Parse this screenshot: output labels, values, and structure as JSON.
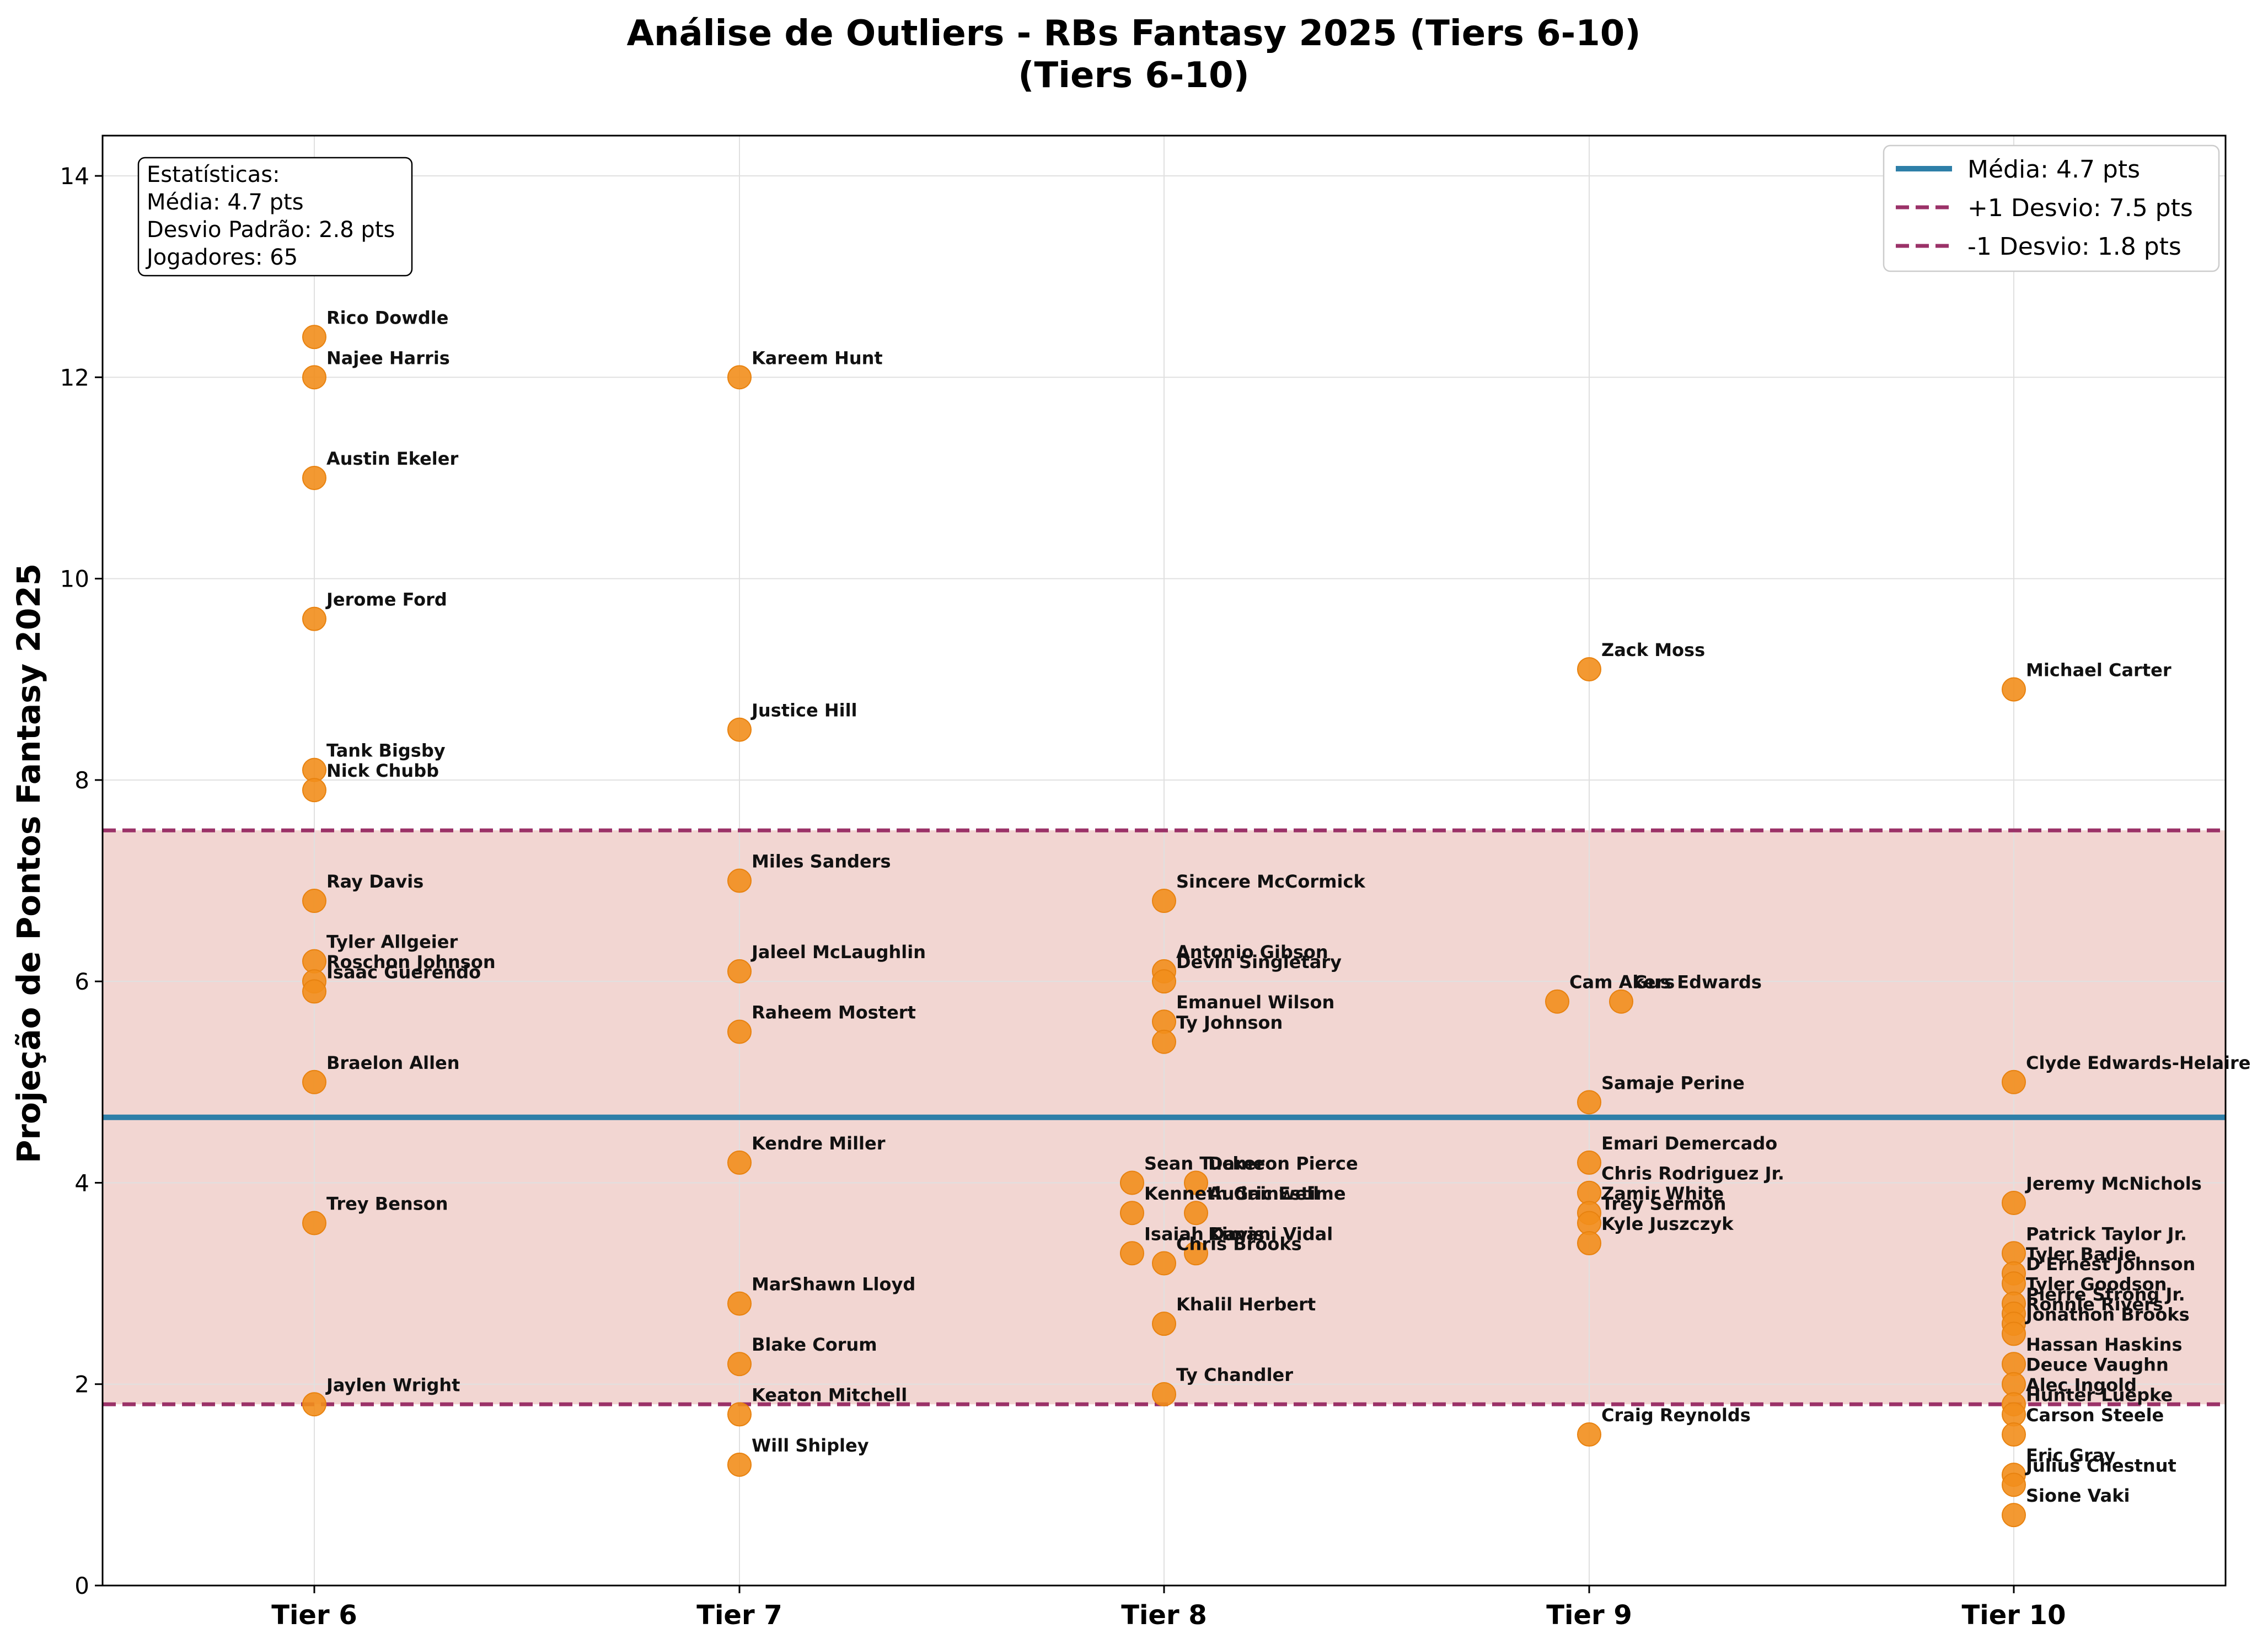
{
  "chart_data": {
    "type": "scatter",
    "title": "Análise de Outliers - RBs Fantasy 2025 (Tiers 6-10)",
    "subtitle": "(Tiers 6-10)",
    "xlabel": "",
    "ylabel": "Projeção de Pontos Fantasy 2025",
    "categories": [
      "Tier 6",
      "Tier 7",
      "Tier 8",
      "Tier 9",
      "Tier 10"
    ],
    "ylim": [
      0,
      14.4
    ],
    "yticks": [
      0,
      2,
      4,
      6,
      8,
      10,
      12,
      14
    ],
    "grid": true,
    "legend_position": "top-right",
    "colors": {
      "points": "#f28e1c",
      "mean_line": "#2e7fa8",
      "std_lines": "#9b3268",
      "band": "#f2d6d2",
      "grid": "#e0e0e0"
    },
    "mean": 4.65,
    "plus_1sd": 7.5,
    "minus_1sd": 1.8,
    "legend": [
      {
        "label": "Média: 4.7 pts",
        "style": "solid"
      },
      {
        "label": "+1 Desvio: 7.5 pts",
        "style": "dashed"
      },
      {
        "label": "-1 Desvio: 1.8 pts",
        "style": "dashed"
      }
    ],
    "stats_box": [
      "Estatísticas:",
      "Média: 4.7 pts",
      "Desvio Padrão: 2.8 pts",
      "Jogadores: 65"
    ],
    "points": [
      {
        "tier": "Tier 6",
        "name": "Rico Dowdle",
        "y": 12.4
      },
      {
        "tier": "Tier 6",
        "name": "Najee Harris",
        "y": 12.0
      },
      {
        "tier": "Tier 6",
        "name": "Austin Ekeler",
        "y": 11.0
      },
      {
        "tier": "Tier 6",
        "name": "Jerome Ford",
        "y": 9.6
      },
      {
        "tier": "Tier 6",
        "name": "Tank Bigsby",
        "y": 8.1
      },
      {
        "tier": "Tier 6",
        "name": "Nick Chubb",
        "y": 7.9
      },
      {
        "tier": "Tier 6",
        "name": "Ray Davis",
        "y": 6.8
      },
      {
        "tier": "Tier 6",
        "name": "Tyler Allgeier",
        "y": 6.2
      },
      {
        "tier": "Tier 6",
        "name": "Roschon Johnson",
        "y": 6.0
      },
      {
        "tier": "Tier 6",
        "name": "Isaac Guerendo",
        "y": 5.9
      },
      {
        "tier": "Tier 6",
        "name": "Braelon Allen",
        "y": 5.0
      },
      {
        "tier": "Tier 6",
        "name": "Trey Benson",
        "y": 3.6
      },
      {
        "tier": "Tier 6",
        "name": "Jaylen Wright",
        "y": 1.8
      },
      {
        "tier": "Tier 7",
        "name": "Kareem Hunt",
        "y": 12.0
      },
      {
        "tier": "Tier 7",
        "name": "Justice Hill",
        "y": 8.5
      },
      {
        "tier": "Tier 7",
        "name": "Miles Sanders",
        "y": 7.0
      },
      {
        "tier": "Tier 7",
        "name": "Jaleel McLaughlin",
        "y": 6.1
      },
      {
        "tier": "Tier 7",
        "name": "Raheem Mostert",
        "y": 5.5
      },
      {
        "tier": "Tier 7",
        "name": "Kendre Miller",
        "y": 4.2
      },
      {
        "tier": "Tier 7",
        "name": "MarShawn Lloyd",
        "y": 2.8
      },
      {
        "tier": "Tier 7",
        "name": "Blake Corum",
        "y": 2.2
      },
      {
        "tier": "Tier 7",
        "name": "Keaton Mitchell",
        "y": 1.7
      },
      {
        "tier": "Tier 7",
        "name": "Will Shipley",
        "y": 1.2
      },
      {
        "tier": "Tier 8",
        "name": "Sincere McCormick",
        "y": 6.8
      },
      {
        "tier": "Tier 8",
        "name": "Antonio Gibson",
        "y": 6.1
      },
      {
        "tier": "Tier 8",
        "name": "Devin Singletary",
        "y": 6.0
      },
      {
        "tier": "Tier 8",
        "name": "Emanuel Wilson",
        "y": 5.6
      },
      {
        "tier": "Tier 8",
        "name": "Ty Johnson",
        "y": 5.4
      },
      {
        "tier": "Tier 8",
        "name": "Sean Tucker",
        "y": 4.0
      },
      {
        "tier": "Tier 8",
        "name": "Dameon Pierce",
        "y": 4.0
      },
      {
        "tier": "Tier 8",
        "name": "Kenneth Gainwell",
        "y": 3.7
      },
      {
        "tier": "Tier 8",
        "name": "Audric Estime",
        "y": 3.7
      },
      {
        "tier": "Tier 8",
        "name": "Isaiah Davis",
        "y": 3.3
      },
      {
        "tier": "Tier 8",
        "name": "Kimani Vidal",
        "y": 3.3
      },
      {
        "tier": "Tier 8",
        "name": "Chris Brooks",
        "y": 3.2
      },
      {
        "tier": "Tier 8",
        "name": "Khalil Herbert",
        "y": 2.6
      },
      {
        "tier": "Tier 8",
        "name": "Ty Chandler",
        "y": 1.9
      },
      {
        "tier": "Tier 9",
        "name": "Zack Moss",
        "y": 9.1
      },
      {
        "tier": "Tier 9",
        "name": "Cam Akers",
        "y": 5.8
      },
      {
        "tier": "Tier 9",
        "name": "Gus Edwards",
        "y": 5.8
      },
      {
        "tier": "Tier 9",
        "name": "Samaje Perine",
        "y": 4.8
      },
      {
        "tier": "Tier 9",
        "name": "Emari Demercado",
        "y": 4.2
      },
      {
        "tier": "Tier 9",
        "name": "Chris Rodriguez Jr.",
        "y": 3.9
      },
      {
        "tier": "Tier 9",
        "name": "Zamir White",
        "y": 3.7
      },
      {
        "tier": "Tier 9",
        "name": "Trey Sermon",
        "y": 3.6
      },
      {
        "tier": "Tier 9",
        "name": "Kyle Juszczyk",
        "y": 3.4
      },
      {
        "tier": "Tier 9",
        "name": "Craig Reynolds",
        "y": 1.5
      },
      {
        "tier": "Tier 10",
        "name": "Michael Carter",
        "y": 8.9
      },
      {
        "tier": "Tier 10",
        "name": "Clyde Edwards-Helaire",
        "y": 5.0
      },
      {
        "tier": "Tier 10",
        "name": "Jeremy McNichols",
        "y": 3.8
      },
      {
        "tier": "Tier 10",
        "name": "Patrick Taylor Jr.",
        "y": 3.3
      },
      {
        "tier": "Tier 10",
        "name": "Tyler Badie",
        "y": 3.1
      },
      {
        "tier": "Tier 10",
        "name": "D'Ernest Johnson",
        "y": 3.0
      },
      {
        "tier": "Tier 10",
        "name": "Tyler Goodson",
        "y": 2.8
      },
      {
        "tier": "Tier 10",
        "name": "Pierre Strong Jr.",
        "y": 2.7
      },
      {
        "tier": "Tier 10",
        "name": "Ronnie Rivers",
        "y": 2.6
      },
      {
        "tier": "Tier 10",
        "name": "Jonathon Brooks",
        "y": 2.5
      },
      {
        "tier": "Tier 10",
        "name": "Hassan Haskins",
        "y": 2.2
      },
      {
        "tier": "Tier 10",
        "name": "Deuce Vaughn",
        "y": 2.0
      },
      {
        "tier": "Tier 10",
        "name": "Alec Ingold",
        "y": 1.8
      },
      {
        "tier": "Tier 10",
        "name": "Hunter Luepke",
        "y": 1.7
      },
      {
        "tier": "Tier 10",
        "name": "Carson Steele",
        "y": 1.5
      },
      {
        "tier": "Tier 10",
        "name": "Eric Gray",
        "y": 1.1
      },
      {
        "tier": "Tier 10",
        "name": "Julius Chestnut",
        "y": 1.0
      },
      {
        "tier": "Tier 10",
        "name": "Sione Vaki",
        "y": 0.7
      }
    ]
  }
}
